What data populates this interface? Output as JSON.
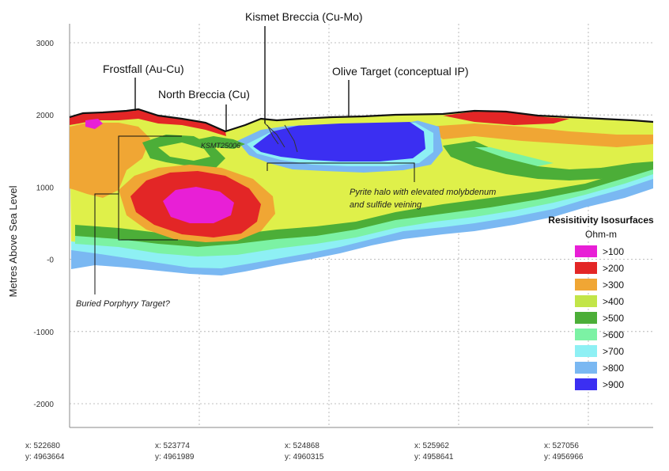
{
  "chart_data": {
    "type": "cross-section",
    "title": "",
    "ylabel": "Metres Above Sea Level",
    "ylim": [
      -2400,
      3400
    ],
    "y_ticks": [
      "3000",
      "2000",
      "1000",
      "-0",
      "-1000",
      "-2000"
    ],
    "y_tick_values": [
      3000,
      2000,
      1000,
      0,
      -1000,
      -2000
    ],
    "x_ticks": [
      {
        "x": "x: 522680",
        "y": "y: 4963664"
      },
      {
        "x": "x: 523774",
        "y": "y: 4961989"
      },
      {
        "x": "x: 524868",
        "y": "y: 4960315"
      },
      {
        "x": "x: 525962",
        "y": "y: 4958641"
      },
      {
        "x": "x: 527056",
        "y": "y: 4956966"
      }
    ],
    "targets": [
      {
        "label": "Kismet Breccia (Cu-Mo)"
      },
      {
        "label": "Frostfall (Au-Cu)"
      },
      {
        "label": "North Breccia (Cu)"
      },
      {
        "label": "Olive Target (conceptual IP)"
      }
    ],
    "drillhole_label": "KSMT25006",
    "annotations": {
      "pyrite_line1": "Pyrite halo with elevated molybdenum",
      "pyrite_line2": "and sulfide veining",
      "buried": "Buried Porphyry Target?"
    },
    "legend": {
      "title": "Resisitivity Isosurfaces",
      "unit": "Ohm-m",
      "placement": "right",
      "entries": [
        {
          "label": ">100",
          "color": "#e81fd6"
        },
        {
          "label": ">200",
          "color": "#e32626"
        },
        {
          "label": ">300",
          "color": "#f0a634"
        },
        {
          "label": ">400",
          "color": "#c2e548"
        },
        {
          "label": ">500",
          "color": "#4cae38"
        },
        {
          "label": ">600",
          "color": "#7cf2a4"
        },
        {
          "label": ">700",
          "color": "#8ef0f4"
        },
        {
          "label": ">800",
          "color": "#7ab8f2"
        },
        {
          "label": ">900",
          "color": "#3b2ff2"
        }
      ]
    }
  }
}
